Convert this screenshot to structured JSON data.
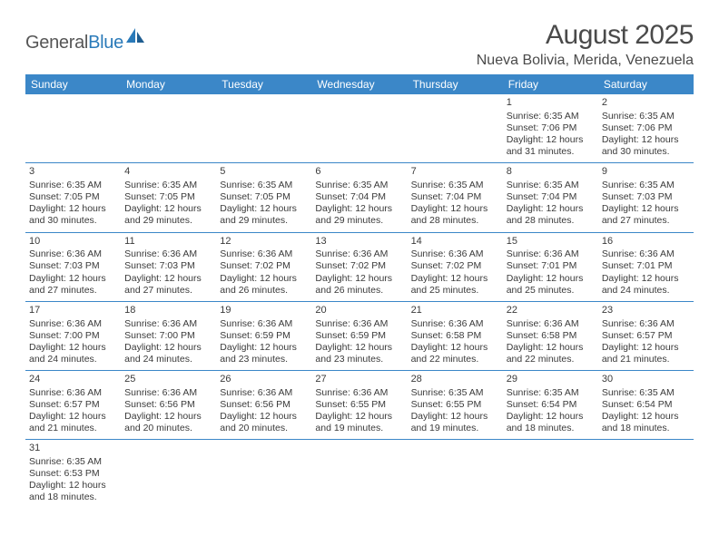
{
  "logo": {
    "text1": "General",
    "text2": "Blue"
  },
  "title": "August 2025",
  "location": "Nueva Bolivia, Merida, Venezuela",
  "colors": {
    "header_bg": "#3b87c8",
    "header_text": "#ffffff",
    "rule": "#3b87c8",
    "text": "#3a3a3a",
    "logo_gray": "#565656",
    "logo_blue": "#2a7ab9",
    "background": "#ffffff"
  },
  "dayHeaders": [
    "Sunday",
    "Monday",
    "Tuesday",
    "Wednesday",
    "Thursday",
    "Friday",
    "Saturday"
  ],
  "weeks": [
    [
      null,
      null,
      null,
      null,
      null,
      {
        "n": "1",
        "sr": "Sunrise: 6:35 AM",
        "ss": "Sunset: 7:06 PM",
        "d1": "Daylight: 12 hours",
        "d2": "and 31 minutes."
      },
      {
        "n": "2",
        "sr": "Sunrise: 6:35 AM",
        "ss": "Sunset: 7:06 PM",
        "d1": "Daylight: 12 hours",
        "d2": "and 30 minutes."
      }
    ],
    [
      {
        "n": "3",
        "sr": "Sunrise: 6:35 AM",
        "ss": "Sunset: 7:05 PM",
        "d1": "Daylight: 12 hours",
        "d2": "and 30 minutes."
      },
      {
        "n": "4",
        "sr": "Sunrise: 6:35 AM",
        "ss": "Sunset: 7:05 PM",
        "d1": "Daylight: 12 hours",
        "d2": "and 29 minutes."
      },
      {
        "n": "5",
        "sr": "Sunrise: 6:35 AM",
        "ss": "Sunset: 7:05 PM",
        "d1": "Daylight: 12 hours",
        "d2": "and 29 minutes."
      },
      {
        "n": "6",
        "sr": "Sunrise: 6:35 AM",
        "ss": "Sunset: 7:04 PM",
        "d1": "Daylight: 12 hours",
        "d2": "and 29 minutes."
      },
      {
        "n": "7",
        "sr": "Sunrise: 6:35 AM",
        "ss": "Sunset: 7:04 PM",
        "d1": "Daylight: 12 hours",
        "d2": "and 28 minutes."
      },
      {
        "n": "8",
        "sr": "Sunrise: 6:35 AM",
        "ss": "Sunset: 7:04 PM",
        "d1": "Daylight: 12 hours",
        "d2": "and 28 minutes."
      },
      {
        "n": "9",
        "sr": "Sunrise: 6:35 AM",
        "ss": "Sunset: 7:03 PM",
        "d1": "Daylight: 12 hours",
        "d2": "and 27 minutes."
      }
    ],
    [
      {
        "n": "10",
        "sr": "Sunrise: 6:36 AM",
        "ss": "Sunset: 7:03 PM",
        "d1": "Daylight: 12 hours",
        "d2": "and 27 minutes."
      },
      {
        "n": "11",
        "sr": "Sunrise: 6:36 AM",
        "ss": "Sunset: 7:03 PM",
        "d1": "Daylight: 12 hours",
        "d2": "and 27 minutes."
      },
      {
        "n": "12",
        "sr": "Sunrise: 6:36 AM",
        "ss": "Sunset: 7:02 PM",
        "d1": "Daylight: 12 hours",
        "d2": "and 26 minutes."
      },
      {
        "n": "13",
        "sr": "Sunrise: 6:36 AM",
        "ss": "Sunset: 7:02 PM",
        "d1": "Daylight: 12 hours",
        "d2": "and 26 minutes."
      },
      {
        "n": "14",
        "sr": "Sunrise: 6:36 AM",
        "ss": "Sunset: 7:02 PM",
        "d1": "Daylight: 12 hours",
        "d2": "and 25 minutes."
      },
      {
        "n": "15",
        "sr": "Sunrise: 6:36 AM",
        "ss": "Sunset: 7:01 PM",
        "d1": "Daylight: 12 hours",
        "d2": "and 25 minutes."
      },
      {
        "n": "16",
        "sr": "Sunrise: 6:36 AM",
        "ss": "Sunset: 7:01 PM",
        "d1": "Daylight: 12 hours",
        "d2": "and 24 minutes."
      }
    ],
    [
      {
        "n": "17",
        "sr": "Sunrise: 6:36 AM",
        "ss": "Sunset: 7:00 PM",
        "d1": "Daylight: 12 hours",
        "d2": "and 24 minutes."
      },
      {
        "n": "18",
        "sr": "Sunrise: 6:36 AM",
        "ss": "Sunset: 7:00 PM",
        "d1": "Daylight: 12 hours",
        "d2": "and 24 minutes."
      },
      {
        "n": "19",
        "sr": "Sunrise: 6:36 AM",
        "ss": "Sunset: 6:59 PM",
        "d1": "Daylight: 12 hours",
        "d2": "and 23 minutes."
      },
      {
        "n": "20",
        "sr": "Sunrise: 6:36 AM",
        "ss": "Sunset: 6:59 PM",
        "d1": "Daylight: 12 hours",
        "d2": "and 23 minutes."
      },
      {
        "n": "21",
        "sr": "Sunrise: 6:36 AM",
        "ss": "Sunset: 6:58 PM",
        "d1": "Daylight: 12 hours",
        "d2": "and 22 minutes."
      },
      {
        "n": "22",
        "sr": "Sunrise: 6:36 AM",
        "ss": "Sunset: 6:58 PM",
        "d1": "Daylight: 12 hours",
        "d2": "and 22 minutes."
      },
      {
        "n": "23",
        "sr": "Sunrise: 6:36 AM",
        "ss": "Sunset: 6:57 PM",
        "d1": "Daylight: 12 hours",
        "d2": "and 21 minutes."
      }
    ],
    [
      {
        "n": "24",
        "sr": "Sunrise: 6:36 AM",
        "ss": "Sunset: 6:57 PM",
        "d1": "Daylight: 12 hours",
        "d2": "and 21 minutes."
      },
      {
        "n": "25",
        "sr": "Sunrise: 6:36 AM",
        "ss": "Sunset: 6:56 PM",
        "d1": "Daylight: 12 hours",
        "d2": "and 20 minutes."
      },
      {
        "n": "26",
        "sr": "Sunrise: 6:36 AM",
        "ss": "Sunset: 6:56 PM",
        "d1": "Daylight: 12 hours",
        "d2": "and 20 minutes."
      },
      {
        "n": "27",
        "sr": "Sunrise: 6:36 AM",
        "ss": "Sunset: 6:55 PM",
        "d1": "Daylight: 12 hours",
        "d2": "and 19 minutes."
      },
      {
        "n": "28",
        "sr": "Sunrise: 6:35 AM",
        "ss": "Sunset: 6:55 PM",
        "d1": "Daylight: 12 hours",
        "d2": "and 19 minutes."
      },
      {
        "n": "29",
        "sr": "Sunrise: 6:35 AM",
        "ss": "Sunset: 6:54 PM",
        "d1": "Daylight: 12 hours",
        "d2": "and 18 minutes."
      },
      {
        "n": "30",
        "sr": "Sunrise: 6:35 AM",
        "ss": "Sunset: 6:54 PM",
        "d1": "Daylight: 12 hours",
        "d2": "and 18 minutes."
      }
    ],
    [
      {
        "n": "31",
        "sr": "Sunrise: 6:35 AM",
        "ss": "Sunset: 6:53 PM",
        "d1": "Daylight: 12 hours",
        "d2": "and 18 minutes."
      },
      null,
      null,
      null,
      null,
      null,
      null
    ]
  ]
}
